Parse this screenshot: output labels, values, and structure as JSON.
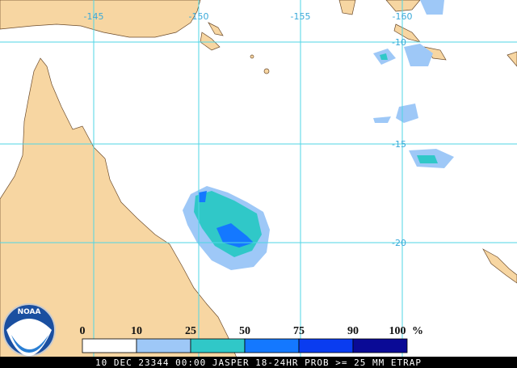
{
  "map": {
    "longitude_labels": [
      -145,
      -150,
      -155,
      -160
    ],
    "latitude_labels": [
      -10,
      -15,
      -20
    ],
    "legend": {
      "ticks": [
        0,
        10,
        25,
        50,
        75,
        90,
        100
      ],
      "unit": "%",
      "colors": [
        "#ffffff",
        "#9ec8f7",
        "#30c8c8",
        "#1478ff",
        "#0a3cf0",
        "#0a0a96"
      ]
    },
    "logo_text": "NOAA",
    "footer": "10 DEC 23344 00:00 JASPER 18-24HR PROB >= 25 MM ETRAP"
  }
}
